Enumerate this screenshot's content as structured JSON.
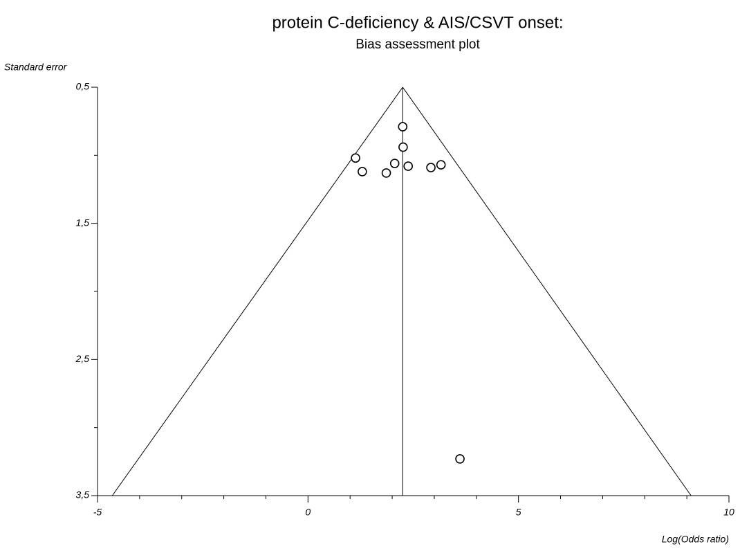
{
  "chart_data": {
    "type": "funnel",
    "title": "protein C-deficiency & AIS/CSVT onset:",
    "subtitle": "Bias assessment plot",
    "x_label": "Log(Odds ratio)",
    "y_label": "Standard error",
    "x": [
      2.25,
      2.26,
      1.13,
      1.29,
      2.06,
      1.86,
      2.38,
      2.92,
      3.16,
      3.61
    ],
    "values": [
      0.79,
      0.94,
      1.02,
      1.12,
      1.06,
      1.13,
      1.08,
      1.09,
      1.07,
      3.23
    ],
    "reference_line": 2.25,
    "funnel_bottom": [
      -4.65,
      9.1
    ],
    "xlim": [
      -5,
      10
    ],
    "ylim": [
      3.5,
      0.5
    ],
    "xticks": [
      -5,
      0,
      5,
      10
    ],
    "x_minor_ticks": [
      -4,
      -3,
      -2,
      -1,
      1,
      2,
      3,
      4,
      6,
      7,
      8,
      9
    ],
    "yticks": [
      {
        "value": 0.5,
        "label": "0,5"
      },
      {
        "value": 1.5,
        "label": "1,5"
      },
      {
        "value": 2.5,
        "label": "2,5"
      },
      {
        "value": 3.5,
        "label": "3,5"
      }
    ],
    "y_minor_ticks": [
      1,
      2,
      3
    ],
    "marker_color": "#000000"
  }
}
